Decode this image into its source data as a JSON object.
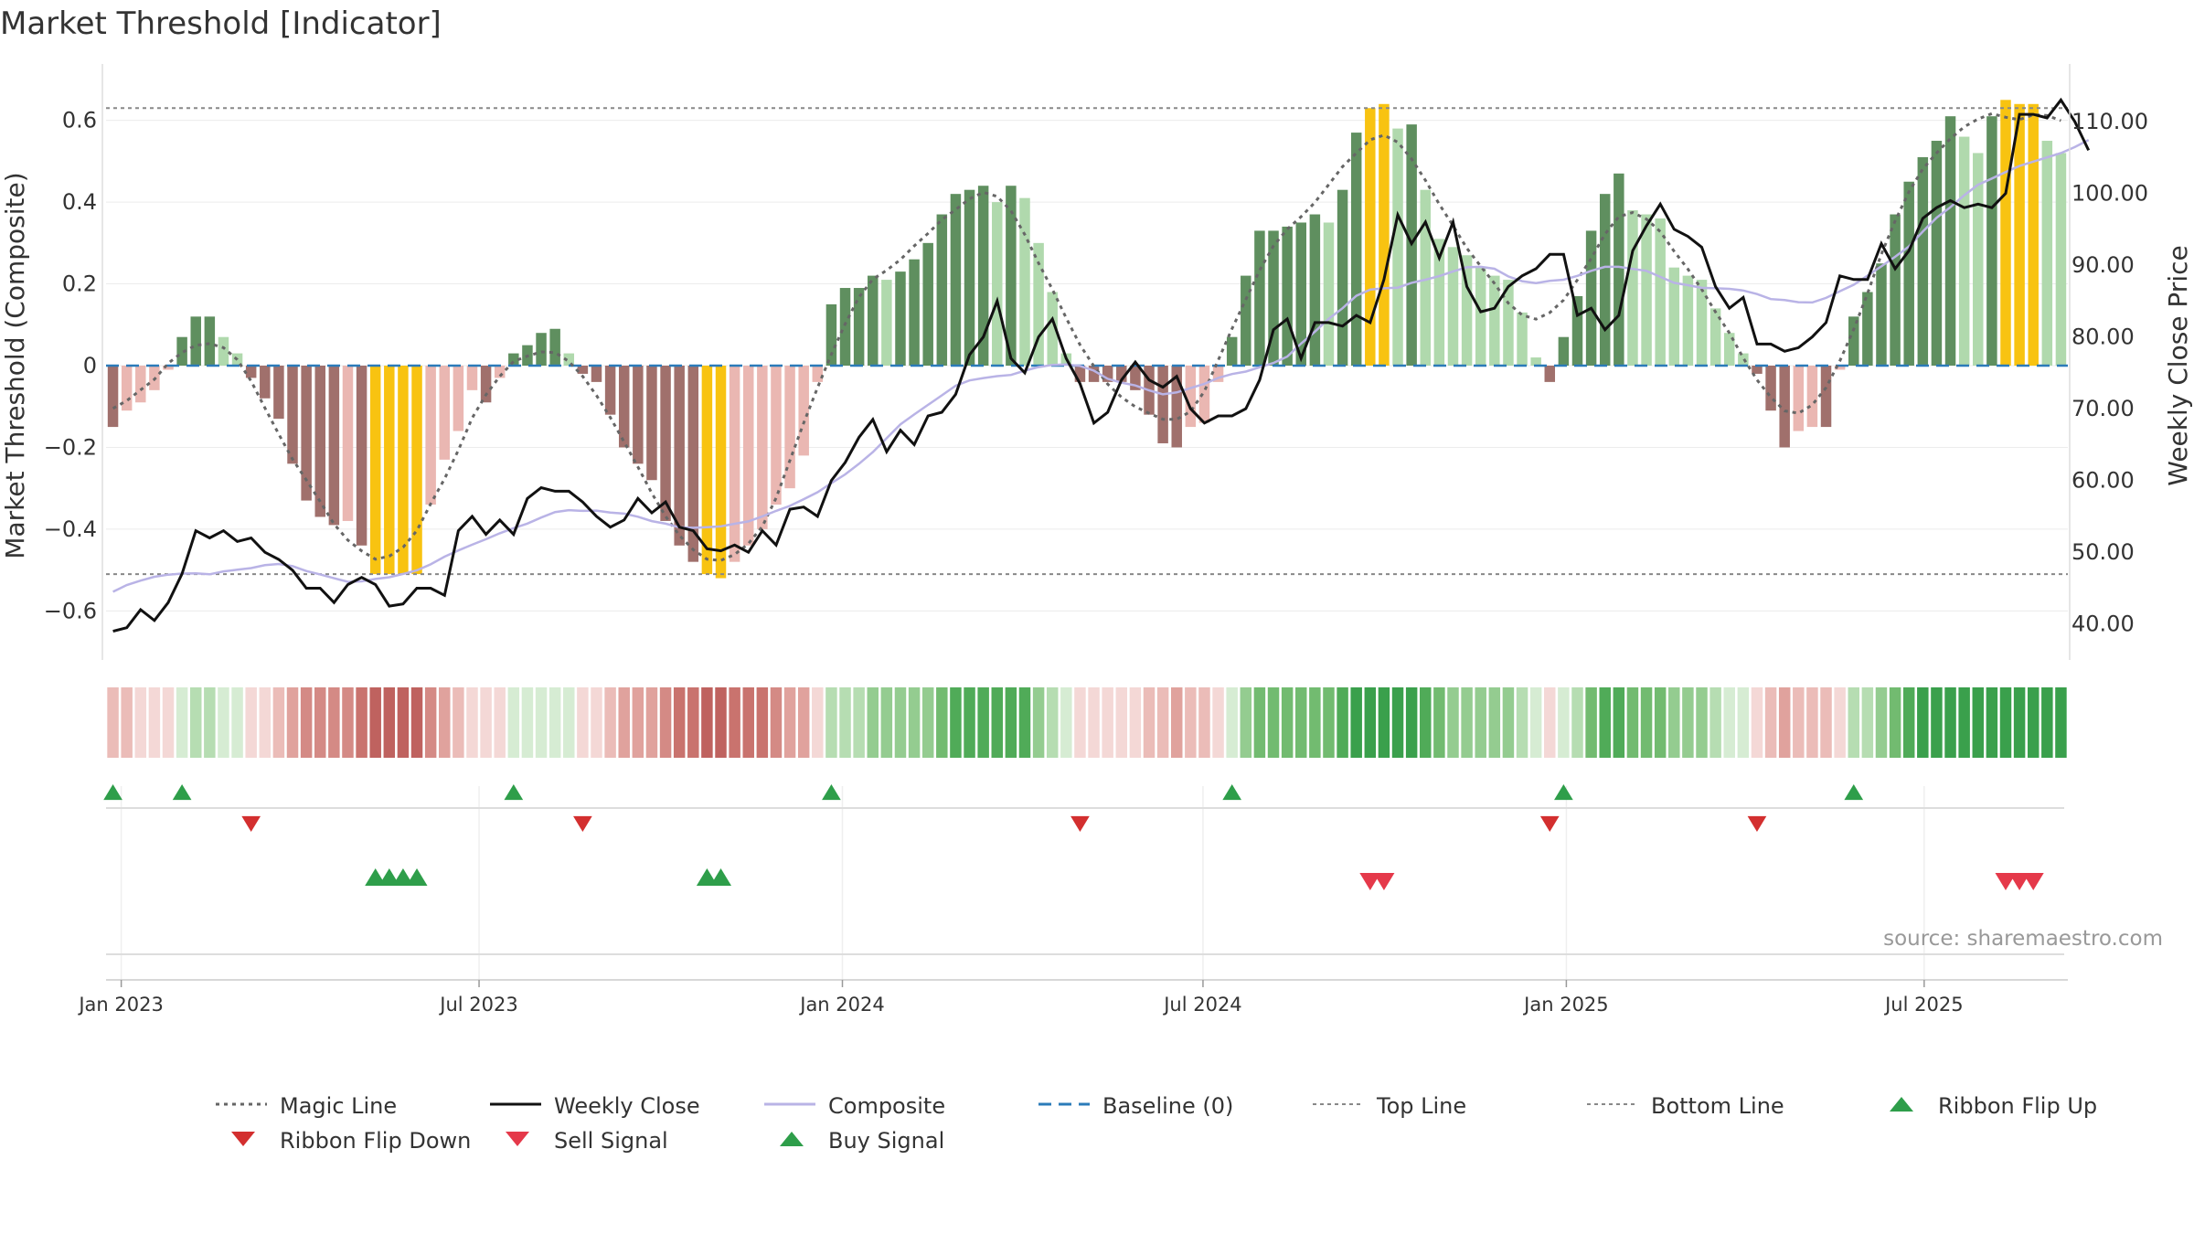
{
  "title": "Market Threshold [Indicator]",
  "source": "source: sharemaestro.com",
  "axis": {
    "y_left_label": "Market Threshold (Composite)",
    "y_right_label": "Weekly Close Price",
    "y_left_ticks": [
      "0.6",
      "0.4",
      "0.2",
      "0",
      "−0.2",
      "−0.4",
      "−0.6"
    ],
    "y_left_tick_values": [
      0.6,
      0.4,
      0.2,
      0,
      -0.2,
      -0.4,
      -0.6
    ],
    "y_right_ticks": [
      "110.00",
      "100.00",
      "90.00",
      "80.00",
      "70.00",
      "60.00",
      "50.00",
      "40.00"
    ],
    "y_right_tick_values": [
      110,
      100,
      90,
      80,
      70,
      60,
      50,
      40
    ],
    "x_ticks": [
      "Jan 2023",
      "Jul 2023",
      "Jan 2024",
      "Jul 2024",
      "Jan 2025",
      "Jul 2025"
    ],
    "x_tick_weeks": [
      0.6,
      26.5,
      52.8,
      78.9,
      105.2,
      131.1
    ]
  },
  "colors": {
    "up_dark": "#5f8f5f",
    "up_light": "#b0d9ad",
    "down_dark": "#a0706c",
    "down_light": "#eab7b2",
    "extreme": "#f8c311",
    "weekly_close": "#111111",
    "magic_line": "#666666",
    "composite": "#b9b3e6",
    "baseline": "#2b7bb9",
    "threshold": "#888888",
    "flip_up": "#2e9e4a",
    "flip_down": "#d32f2f",
    "sell_signal": "#e5394a",
    "buy_signal": "#2e9e4a"
  },
  "legend": [
    {
      "label": "Magic Line",
      "symbol": "dotted",
      "color": "#666666"
    },
    {
      "label": "Weekly Close",
      "symbol": "solid",
      "color": "#111111"
    },
    {
      "label": "Composite",
      "symbol": "solid",
      "color": "#b9b3e6"
    },
    {
      "label": "Baseline (0)",
      "symbol": "dashed",
      "color": "#2b7bb9"
    },
    {
      "label": "Top Line",
      "symbol": "dotted-thin",
      "color": "#888888"
    },
    {
      "label": "Bottom Line",
      "symbol": "dotted-thin",
      "color": "#888888"
    },
    {
      "label": "Ribbon Flip Up",
      "symbol": "triangle-up",
      "color": "#2e9e4a"
    },
    {
      "label": "Ribbon Flip Down",
      "symbol": "triangle-down",
      "color": "#d32f2f"
    },
    {
      "label": "Sell Signal",
      "symbol": "triangle-down",
      "color": "#e5394a"
    },
    {
      "label": "Buy Signal",
      "symbol": "triangle-up",
      "color": "#2e9e4a"
    }
  ],
  "chart_data": {
    "type": "bar",
    "x_unit": "weeks from first bar (weekly, starting late Dec 2022)",
    "ylim_left": [
      -0.72,
      0.72
    ],
    "ylim_right": [
      35,
      117
    ],
    "top_line": 0.63,
    "bottom_line": -0.51,
    "composite_bars": [
      -0.15,
      -0.11,
      -0.09,
      -0.06,
      -0.01,
      0.07,
      0.12,
      0.12,
      0.07,
      0.03,
      -0.03,
      -0.08,
      -0.13,
      -0.24,
      -0.33,
      -0.37,
      -0.39,
      -0.38,
      -0.44,
      -0.51,
      -0.51,
      -0.51,
      -0.51,
      -0.34,
      -0.23,
      -0.16,
      -0.06,
      -0.09,
      -0.03,
      0.03,
      0.05,
      0.08,
      0.09,
      0.03,
      -0.02,
      -0.04,
      -0.12,
      -0.2,
      -0.24,
      -0.28,
      -0.38,
      -0.44,
      -0.48,
      -0.51,
      -0.52,
      -0.48,
      -0.44,
      -0.4,
      -0.34,
      -0.3,
      -0.22,
      -0.04,
      0.15,
      0.19,
      0.19,
      0.22,
      0.21,
      0.23,
      0.26,
      0.3,
      0.37,
      0.42,
      0.43,
      0.44,
      0.4,
      0.44,
      0.41,
      0.3,
      0.18,
      0.03,
      -0.04,
      -0.04,
      -0.04,
      -0.04,
      -0.06,
      -0.12,
      -0.19,
      -0.2,
      -0.15,
      -0.14,
      -0.04,
      0.07,
      0.22,
      0.33,
      0.33,
      0.34,
      0.35,
      0.37,
      0.35,
      0.43,
      0.57,
      0.63,
      0.64,
      0.58,
      0.59,
      0.43,
      0.31,
      0.29,
      0.27,
      0.24,
      0.22,
      0.21,
      0.13,
      0.02,
      -0.04,
      0.07,
      0.17,
      0.33,
      0.42,
      0.47,
      0.38,
      0.37,
      0.36,
      0.24,
      0.22,
      0.21,
      0.14,
      0.08,
      0.03,
      -0.02,
      -0.11,
      -0.2,
      -0.16,
      -0.15,
      -0.15,
      -0.01,
      0.12,
      0.18,
      0.25,
      0.37,
      0.45,
      0.51,
      0.55,
      0.61,
      0.56,
      0.52,
      0.61,
      0.65,
      0.64,
      0.64,
      0.55,
      0.52
    ],
    "weekly_close": [
      39,
      39.5,
      42,
      40.5,
      43,
      47,
      53,
      52,
      53,
      51.5,
      52,
      50,
      49,
      47.5,
      45,
      45,
      43,
      45.5,
      46.5,
      45.5,
      42.5,
      42.8,
      45,
      45,
      44,
      53,
      55,
      52.5,
      54.5,
      52.5,
      57.5,
      59,
      58.5,
      58.5,
      57,
      55,
      53.5,
      54.5,
      57.5,
      55.5,
      57,
      53.5,
      53,
      50.5,
      50.2,
      51,
      50,
      53,
      51,
      56,
      56.3,
      55,
      60,
      62.5,
      66,
      68.5,
      64,
      67,
      65,
      69,
      69.5,
      72,
      77.5,
      80,
      85,
      77,
      75,
      80,
      82.5,
      77,
      73.5,
      68,
      69.5,
      74,
      76.5,
      74,
      73,
      74.5,
      70,
      68,
      69,
      69,
      70,
      74,
      81,
      82.5,
      77,
      82,
      82,
      81.5,
      83,
      82,
      88,
      97,
      93,
      96,
      91,
      96,
      87,
      83.5,
      84,
      87,
      88.5,
      89.5,
      91.5,
      91.5,
      83,
      84,
      81,
      83,
      92,
      95.5,
      98.5,
      95,
      94,
      92.5,
      87,
      84,
      85.5,
      79,
      79,
      78,
      78.5,
      80,
      82,
      88.5,
      88,
      88,
      93,
      89.5,
      92,
      96.5,
      98,
      99,
      98,
      98.5,
      98,
      100,
      111,
      111,
      110.5,
      113,
      110,
      106
    ]
  }
}
